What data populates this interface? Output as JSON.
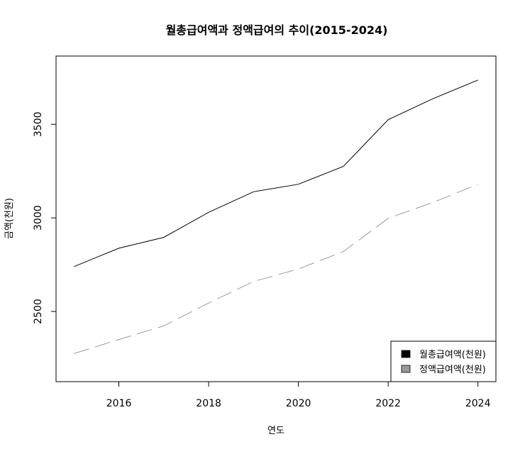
{
  "chart_data": {
    "type": "line",
    "title": "월총급여액과 정액급여의 추이(2015-2024)",
    "xlabel": "연도",
    "ylabel": "금액(천원)",
    "x": [
      2015,
      2016,
      2017,
      2018,
      2019,
      2020,
      2021,
      2022,
      2023,
      2024
    ],
    "xticks": [
      2016,
      2018,
      2020,
      2022,
      2024
    ],
    "yticks": [
      2500,
      3000,
      3500
    ],
    "xlim": [
      2014.6,
      2024.4
    ],
    "ylim": [
      2125,
      3865
    ],
    "grid": false,
    "legend_position": "bottom-right",
    "series": [
      {
        "name": "월총급여액(천원)",
        "color": "#000000",
        "dash": "solid",
        "values": [
          2740,
          2838,
          2896,
          3030,
          3140,
          3180,
          3275,
          3525,
          3637,
          3737
        ]
      },
      {
        "name": "정액급여액(천원)",
        "color": "#9a9a9a",
        "dash": "dashed",
        "values": [
          2275,
          2350,
          2423,
          2545,
          2660,
          2727,
          2820,
          2998,
          3083,
          3180
        ]
      }
    ]
  }
}
